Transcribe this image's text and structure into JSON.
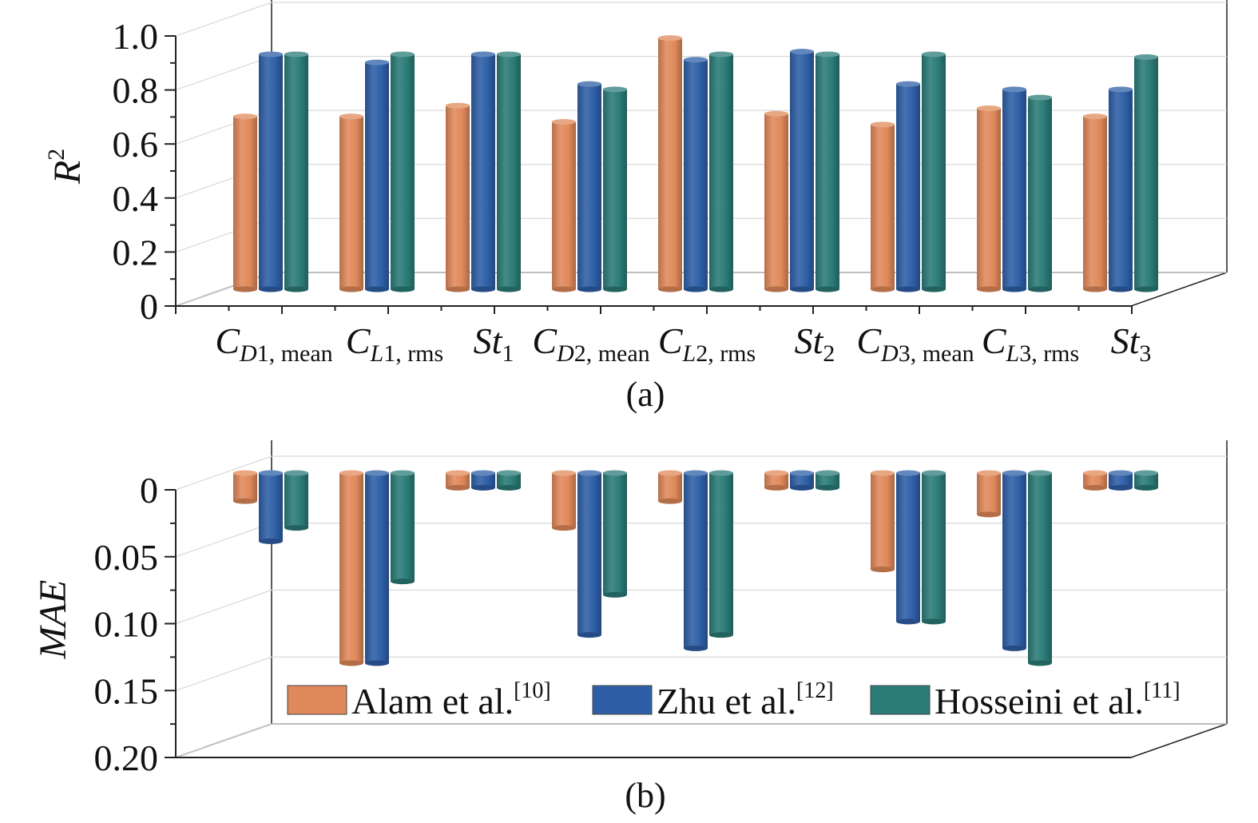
{
  "colors": {
    "alam": "#E0895A",
    "zhu": "#2E5FA6",
    "hosseini": "#2B7B77",
    "axis": "#222222",
    "grid": "#d9d9d9",
    "wall": "#999999"
  },
  "chart_data": [
    {
      "type": "bar",
      "panel_label": "(a)",
      "ylabel": "R",
      "ylabel_sup": "2",
      "ylim": [
        0,
        1.0
      ],
      "yticks": [
        "0",
        "0.2",
        "0.4",
        "0.6",
        "0.8",
        "1.0"
      ],
      "ytick_values": [
        0,
        0.2,
        0.4,
        0.6,
        0.8,
        1.0
      ],
      "categories": [
        {
          "base": "C",
          "sub_italic": "D",
          "sub_rest": "1, mean"
        },
        {
          "base": "C",
          "sub_italic": "L",
          "sub_rest": "1, rms"
        },
        {
          "base": "St",
          "sub_italic": "",
          "sub_rest": "1"
        },
        {
          "base": "C",
          "sub_italic": "D",
          "sub_rest": "2, mean"
        },
        {
          "base": "C",
          "sub_italic": "L",
          "sub_rest": "2, rms"
        },
        {
          "base": "St",
          "sub_italic": "",
          "sub_rest": "2"
        },
        {
          "base": "C",
          "sub_italic": "D",
          "sub_rest": "3, mean"
        },
        {
          "base": "C",
          "sub_italic": "L",
          "sub_rest": "3, rms"
        },
        {
          "base": "St",
          "sub_italic": "",
          "sub_rest": "3"
        }
      ],
      "series": [
        {
          "name": "Alam et al.",
          "ref": "[10]",
          "color_key": "alam",
          "values": [
            0.64,
            0.64,
            0.68,
            0.62,
            0.93,
            0.65,
            0.61,
            0.67,
            0.64
          ]
        },
        {
          "name": "Zhu et al.",
          "ref": "[12]",
          "color_key": "zhu",
          "values": [
            0.87,
            0.84,
            0.87,
            0.76,
            0.85,
            0.88,
            0.76,
            0.74,
            0.74
          ]
        },
        {
          "name": "Hosseini et al.",
          "ref": "[11]",
          "color_key": "hosseini",
          "values": [
            0.87,
            0.87,
            0.87,
            0.74,
            0.87,
            0.87,
            0.87,
            0.71,
            0.86
          ]
        }
      ],
      "grid": true
    },
    {
      "type": "bar",
      "panel_label": "(b)",
      "ylabel": "MAE",
      "ylim": [
        0,
        0.2
      ],
      "inverted": true,
      "yticks": [
        "0",
        "0.05",
        "0.10",
        "0.15",
        "0.20"
      ],
      "ytick_values": [
        0,
        0.05,
        0.1,
        0.15,
        0.2
      ],
      "series": [
        {
          "name": "Alam et al.",
          "ref": "[10]",
          "color_key": "alam",
          "values": [
            0.021,
            0.142,
            0.011,
            0.041,
            0.021,
            0.011,
            0.072,
            0.031,
            0.011
          ]
        },
        {
          "name": "Zhu et al.",
          "ref": "[12]",
          "color_key": "zhu",
          "values": [
            0.051,
            0.142,
            0.011,
            0.121,
            0.131,
            0.011,
            0.111,
            0.131,
            0.011
          ]
        },
        {
          "name": "Hosseini et al.",
          "ref": "[11]",
          "color_key": "hosseini",
          "values": [
            0.041,
            0.081,
            0.011,
            0.091,
            0.121,
            0.011,
            0.111,
            0.142,
            0.011
          ]
        }
      ],
      "legend": {
        "placement": "bottom-inside",
        "entries": [
          {
            "label": "Alam et al.",
            "ref": "[10]",
            "color_key": "alam"
          },
          {
            "label": "Zhu et al.",
            "ref": "[12]",
            "color_key": "zhu"
          },
          {
            "label": "Hosseini et al.",
            "ref": "[11]",
            "color_key": "hosseini"
          }
        ]
      },
      "grid": true
    }
  ]
}
